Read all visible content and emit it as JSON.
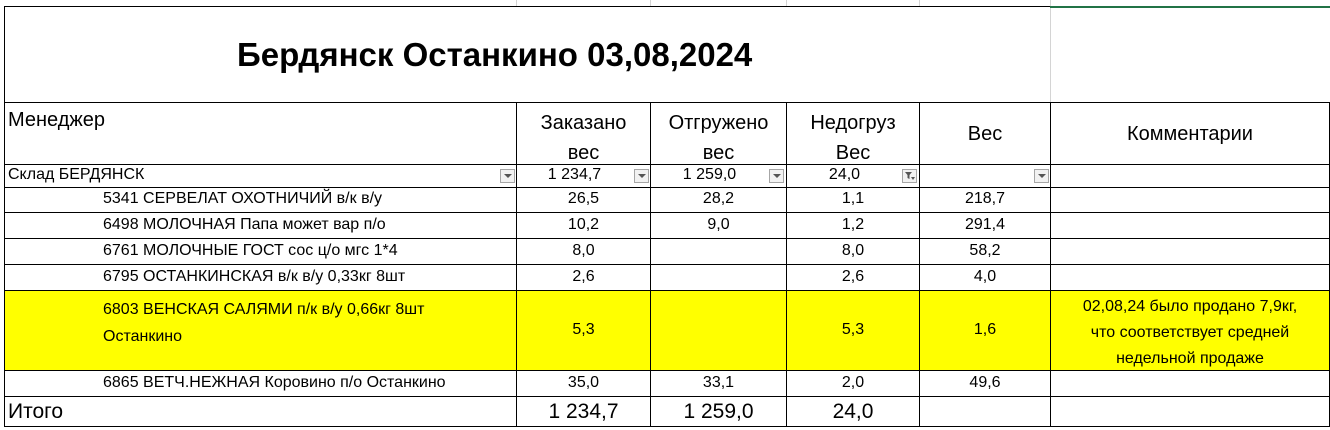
{
  "title": "Бердянск Останкино 03,08,2024",
  "headers": {
    "manager": "Менеджер",
    "ordered_1": "Заказано",
    "ordered_2": "вес",
    "shipped_1": "Отгружено",
    "shipped_2": "вес",
    "shortfall_1": "Недогруз",
    "shortfall_2": "Вес",
    "weight": "Вес",
    "comments": "Комментарии"
  },
  "group": {
    "name": "Склад БЕРДЯНСК",
    "ordered": "1 234,7",
    "shipped": "1 259,0",
    "shortfall": "24,0"
  },
  "rows": [
    {
      "name": "5341 СЕРВЕЛАТ ОХОТНИЧИЙ в/к в/у",
      "ordered": "26,5",
      "shipped": "28,2",
      "shortfall": "1,1",
      "weight": "218,7"
    },
    {
      "name": "6498 МОЛОЧНАЯ Папа может вар п/о",
      "ordered": "10,2",
      "shipped": "9,0",
      "shortfall": "1,2",
      "weight": "291,4"
    },
    {
      "name": "6761 МОЛОЧНЫЕ ГОСТ сос ц/о мгс 1*4",
      "ordered": "8,0",
      "shipped": "",
      "shortfall": "8,0",
      "weight": "58,2"
    },
    {
      "name": "6795 ОСТАНКИНСКАЯ в/к в/у 0,33кг 8шт",
      "ordered": "2,6",
      "shipped": "",
      "shortfall": "2,6",
      "weight": "4,0"
    },
    {
      "name_1": "6803 ВЕНСКАЯ САЛЯМИ п/к в/у 0,66кг 8шт",
      "name_2": "Останкино",
      "ordered": "5,3",
      "shipped": "",
      "shortfall": "5,3",
      "weight": "1,6",
      "comment_1": "02,08,24 было продано 7,9кг,",
      "comment_2": "что соответствует средней",
      "comment_3": "недельной продаже"
    },
    {
      "name": "6865 ВЕТЧ.НЕЖНАЯ Коровино п/о  Останкино",
      "ordered": "35,0",
      "shipped": "33,1",
      "shortfall": "2,0",
      "weight": "49,6"
    }
  ],
  "total": {
    "label": "Итого",
    "ordered": "1 234,7",
    "shipped": "1 259,0",
    "shortfall": "24,0"
  },
  "colors": {
    "highlight": "#ffff00",
    "excel_green": "#217346"
  },
  "icons": [
    "filter-dropdown-icon",
    "filter-active-icon"
  ]
}
